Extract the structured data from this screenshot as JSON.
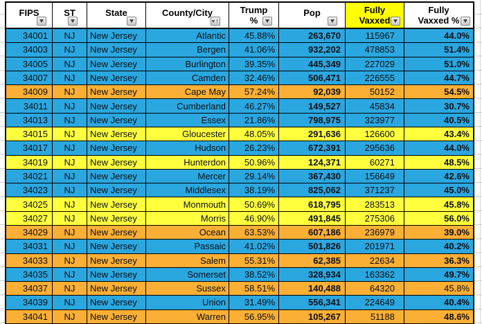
{
  "colors": {
    "row_blue": "#2BA7E0",
    "row_yellow": "#FFFF3D",
    "row_orange": "#FBAF34",
    "header_highlight": "#FFFF00",
    "grid_line": "#000000"
  },
  "table": {
    "columns": [
      {
        "field": "fips",
        "label": "FIPS",
        "filter": "dropdown"
      },
      {
        "field": "st",
        "label": "ST",
        "filter": "dropdown"
      },
      {
        "field": "state",
        "label": "State",
        "filter": "dropdown"
      },
      {
        "field": "county",
        "label": "County/City",
        "filter": "dropdown",
        "sort": "ascending"
      },
      {
        "field": "trump",
        "label": "Trump %",
        "line1": "Trump",
        "line2": "%",
        "filter": "dropdown"
      },
      {
        "field": "pop",
        "label": "Pop",
        "filter": "dropdown"
      },
      {
        "field": "vaxxed",
        "label": "Fully Vaxxed",
        "line1": "Fully",
        "line2": "Vaxxed",
        "filter": "dropdown",
        "highlighted": true
      },
      {
        "field": "vaxxed_pct",
        "label": "Fully Vaxxed %",
        "line1": "Fully",
        "line2": "Vaxxed %",
        "filter": "dropdown"
      }
    ],
    "rows": [
      {
        "fips": "34001",
        "st": "NJ",
        "state": "New Jersey",
        "county": "Atlantic",
        "trump": "45.88%",
        "pop": "263,670",
        "vaxxed": "115967",
        "vaxxed_pct": "44.0%",
        "color": "blue"
      },
      {
        "fips": "34003",
        "st": "NJ",
        "state": "New Jersey",
        "county": "Bergen",
        "trump": "41.06%",
        "pop": "932,202",
        "vaxxed": "478853",
        "vaxxed_pct": "51.4%",
        "color": "blue"
      },
      {
        "fips": "34005",
        "st": "NJ",
        "state": "New Jersey",
        "county": "Burlington",
        "trump": "39.35%",
        "pop": "445,349",
        "vaxxed": "227029",
        "vaxxed_pct": "51.0%",
        "color": "blue"
      },
      {
        "fips": "34007",
        "st": "NJ",
        "state": "New Jersey",
        "county": "Camden",
        "trump": "32.46%",
        "pop": "506,471",
        "vaxxed": "226555",
        "vaxxed_pct": "44.7%",
        "color": "blue"
      },
      {
        "fips": "34009",
        "st": "NJ",
        "state": "New Jersey",
        "county": "Cape May",
        "trump": "57.24%",
        "pop": "92,039",
        "vaxxed": "50152",
        "vaxxed_pct": "54.5%",
        "color": "orange"
      },
      {
        "fips": "34011",
        "st": "NJ",
        "state": "New Jersey",
        "county": "Cumberland",
        "trump": "46.27%",
        "pop": "149,527",
        "vaxxed": "45834",
        "vaxxed_pct": "30.7%",
        "color": "blue"
      },
      {
        "fips": "34013",
        "st": "NJ",
        "state": "New Jersey",
        "county": "Essex",
        "trump": "21.86%",
        "pop": "798,975",
        "vaxxed": "323977",
        "vaxxed_pct": "40.5%",
        "color": "blue"
      },
      {
        "fips": "34015",
        "st": "NJ",
        "state": "New Jersey",
        "county": "Gloucester",
        "trump": "48.05%",
        "pop": "291,636",
        "vaxxed": "126600",
        "vaxxed_pct": "43.4%",
        "color": "yellow"
      },
      {
        "fips": "34017",
        "st": "NJ",
        "state": "New Jersey",
        "county": "Hudson",
        "trump": "26.23%",
        "pop": "672,391",
        "vaxxed": "295636",
        "vaxxed_pct": "44.0%",
        "color": "blue"
      },
      {
        "fips": "34019",
        "st": "NJ",
        "state": "New Jersey",
        "county": "Hunterdon",
        "trump": "50.96%",
        "pop": "124,371",
        "vaxxed": "60271",
        "vaxxed_pct": "48.5%",
        "color": "yellow"
      },
      {
        "fips": "34021",
        "st": "NJ",
        "state": "New Jersey",
        "county": "Mercer",
        "trump": "29.14%",
        "pop": "367,430",
        "vaxxed": "156649",
        "vaxxed_pct": "42.6%",
        "color": "blue"
      },
      {
        "fips": "34023",
        "st": "NJ",
        "state": "New Jersey",
        "county": "Middlesex",
        "trump": "38.19%",
        "pop": "825,062",
        "vaxxed": "371237",
        "vaxxed_pct": "45.0%",
        "color": "blue"
      },
      {
        "fips": "34025",
        "st": "NJ",
        "state": "New Jersey",
        "county": "Monmouth",
        "trump": "50.69%",
        "pop": "618,795",
        "vaxxed": "283513",
        "vaxxed_pct": "45.8%",
        "color": "yellow"
      },
      {
        "fips": "34027",
        "st": "NJ",
        "state": "New Jersey",
        "county": "Morris",
        "trump": "46.90%",
        "pop": "491,845",
        "vaxxed": "275306",
        "vaxxed_pct": "56.0%",
        "color": "yellow"
      },
      {
        "fips": "34029",
        "st": "NJ",
        "state": "New Jersey",
        "county": "Ocean",
        "trump": "63.53%",
        "pop": "607,186",
        "vaxxed": "236979",
        "vaxxed_pct": "39.0%",
        "color": "orange"
      },
      {
        "fips": "34031",
        "st": "NJ",
        "state": "New Jersey",
        "county": "Passaic",
        "trump": "41.02%",
        "pop": "501,826",
        "vaxxed": "201971",
        "vaxxed_pct": "40.2%",
        "color": "blue"
      },
      {
        "fips": "34033",
        "st": "NJ",
        "state": "New Jersey",
        "county": "Salem",
        "trump": "55.31%",
        "pop": "62,385",
        "vaxxed": "22634",
        "vaxxed_pct": "36.3%",
        "color": "orange"
      },
      {
        "fips": "34035",
        "st": "NJ",
        "state": "New Jersey",
        "county": "Somerset",
        "trump": "38.52%",
        "pop": "328,934",
        "vaxxed": "163362",
        "vaxxed_pct": "49.7%",
        "color": "blue"
      },
      {
        "fips": "34037",
        "st": "NJ",
        "state": "New Jersey",
        "county": "Sussex",
        "trump": "58.51%",
        "pop": "140,488",
        "vaxxed": "64320",
        "vaxxed_pct": "45.8%",
        "color": "orange",
        "vaxxed_pct_bold": false
      },
      {
        "fips": "34039",
        "st": "NJ",
        "state": "New Jersey",
        "county": "Union",
        "trump": "31.49%",
        "pop": "556,341",
        "vaxxed": "224649",
        "vaxxed_pct": "40.4%",
        "color": "blue"
      },
      {
        "fips": "34041",
        "st": "NJ",
        "state": "New Jersey",
        "county": "Warren",
        "trump": "56.95%",
        "pop": "105,267",
        "vaxxed": "51188",
        "vaxxed_pct": "48.6%",
        "color": "orange"
      }
    ]
  }
}
